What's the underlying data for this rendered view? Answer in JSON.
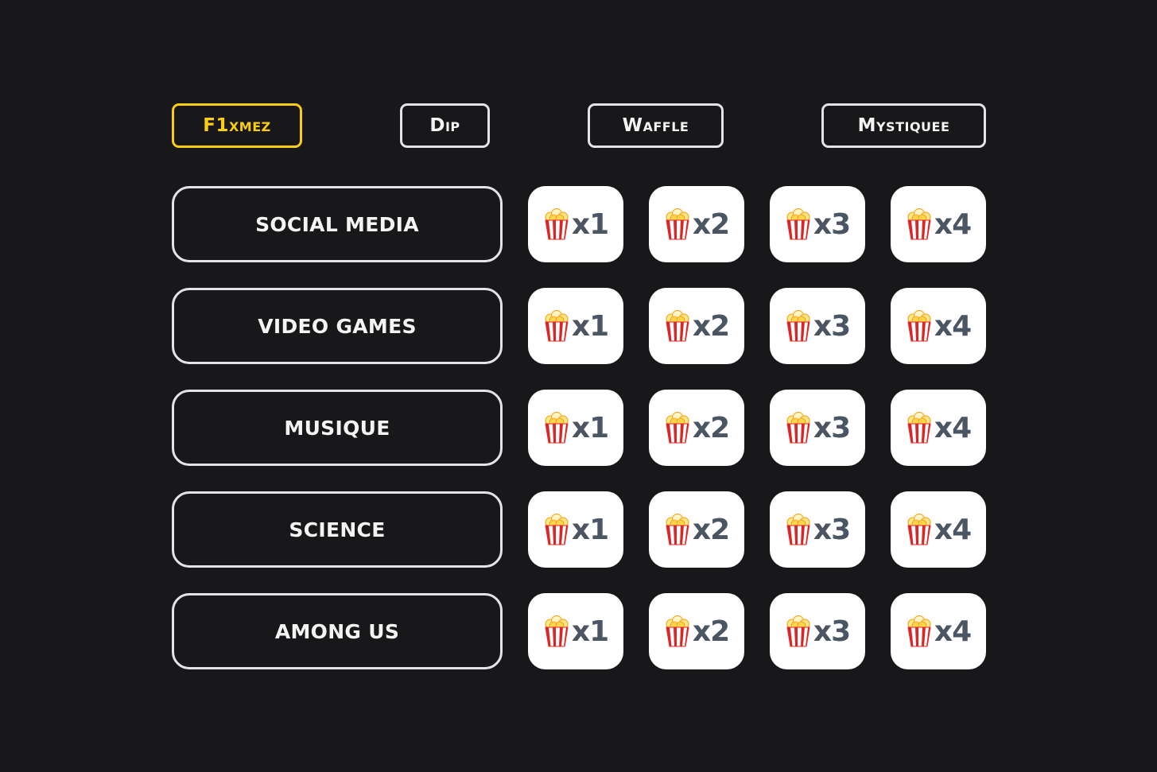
{
  "players": [
    {
      "name": "F1xmez",
      "active": true
    },
    {
      "name": "Dip",
      "active": false
    },
    {
      "name": "Waffle",
      "active": false
    },
    {
      "name": "Mystiquee",
      "active": false
    }
  ],
  "categories": [
    {
      "label": "SOCIAL MEDIA",
      "tiles": [
        "x1",
        "x2",
        "x3",
        "x4"
      ]
    },
    {
      "label": "VIDEO GAMES",
      "tiles": [
        "x1",
        "x2",
        "x3",
        "x4"
      ]
    },
    {
      "label": "MUSIQUE",
      "tiles": [
        "x1",
        "x2",
        "x3",
        "x4"
      ]
    },
    {
      "label": "SCIENCE",
      "tiles": [
        "x1",
        "x2",
        "x3",
        "x4"
      ]
    },
    {
      "label": "AMONG US",
      "tiles": [
        "x1",
        "x2",
        "x3",
        "x4"
      ]
    }
  ],
  "tile_icon": "popcorn-icon",
  "colors": {
    "background": "#18181b",
    "active_player": "#facc15",
    "border": "#e4e4e7",
    "tile_bg": "#ffffff",
    "tile_text": "#4b5563"
  }
}
